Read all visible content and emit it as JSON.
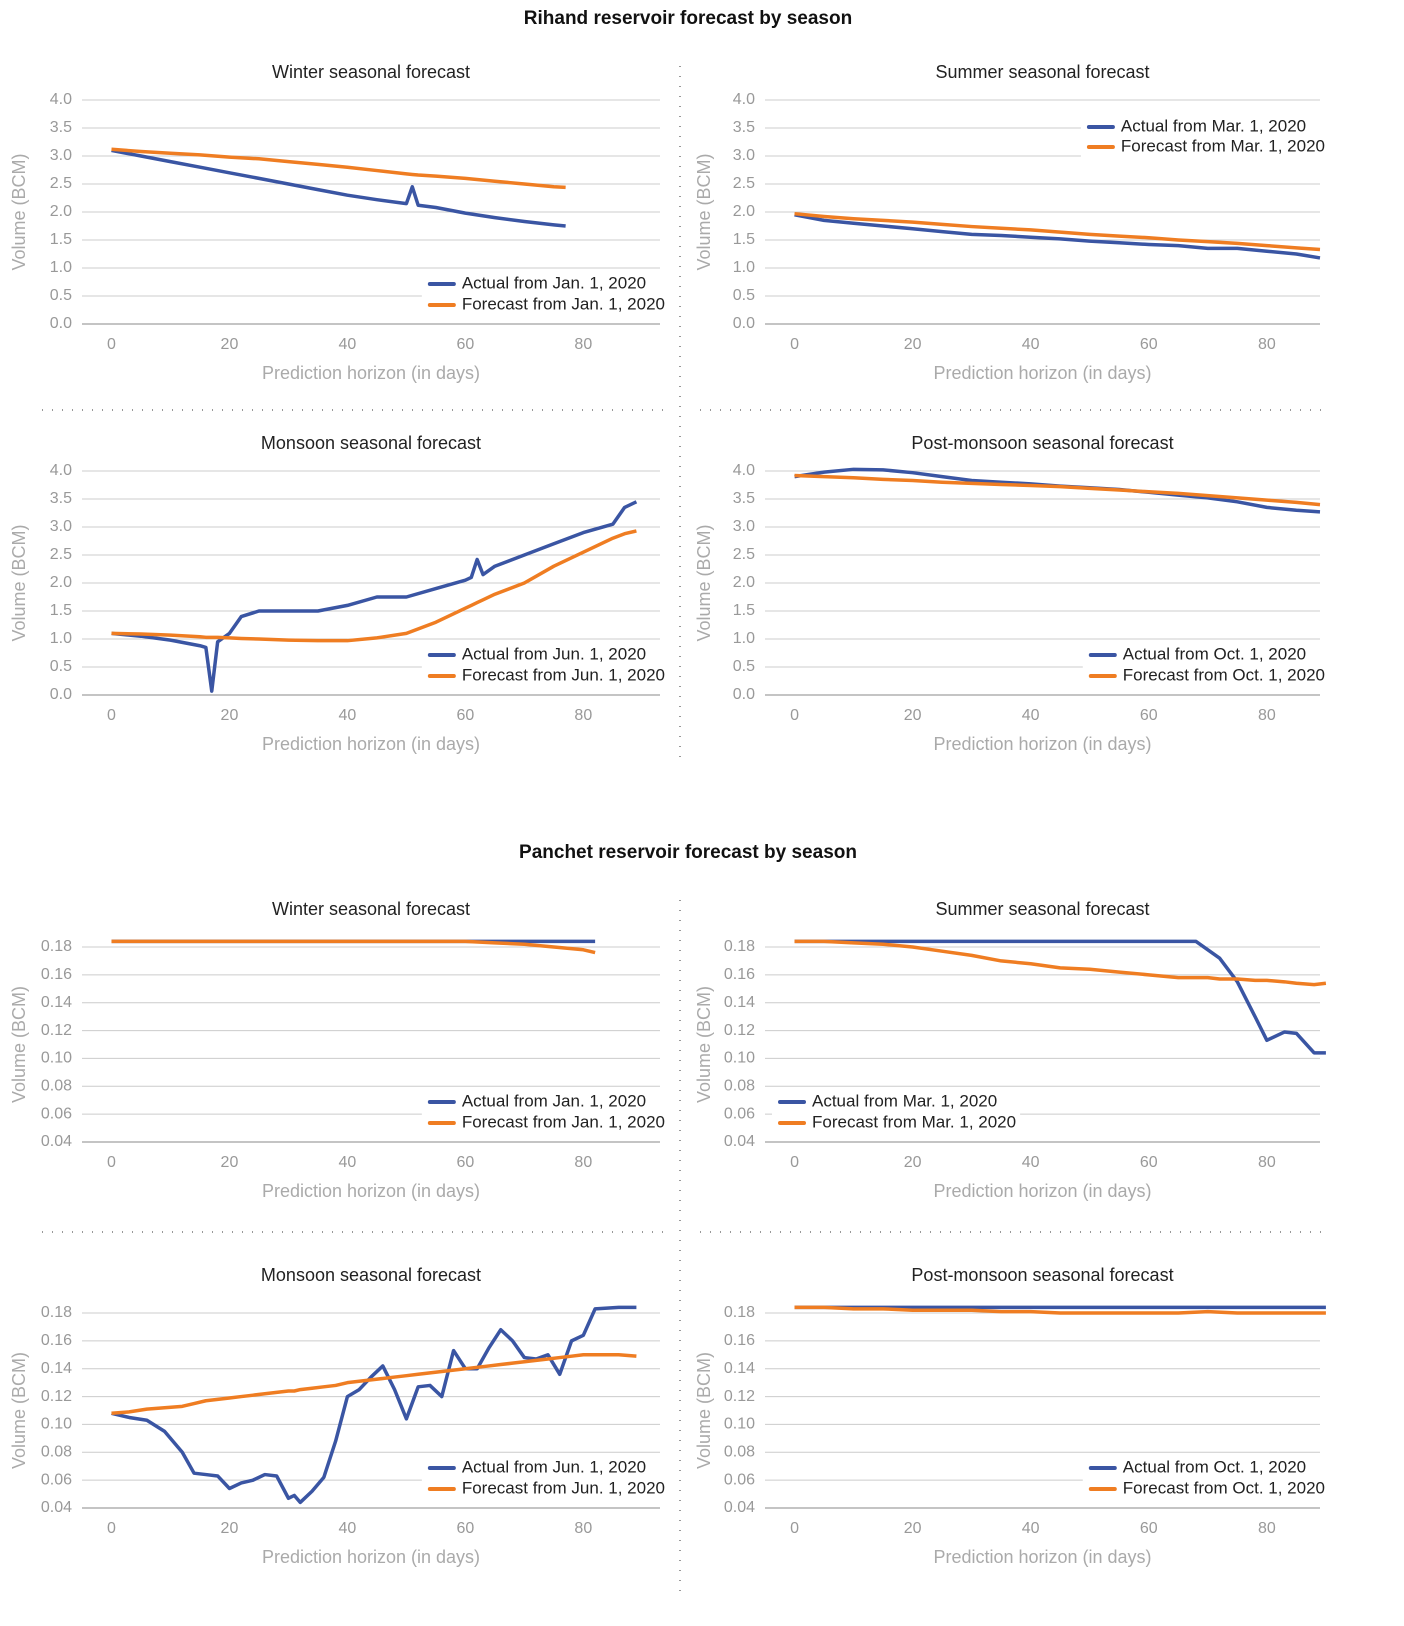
{
  "titles": [
    "Rihand reservoir forecast by season",
    "Panchet reservoir forecast by season"
  ],
  "chart_data": [
    {
      "type": "line",
      "title": "Winter seasonal forecast",
      "x_label": "Prediction horizon (in days)",
      "y_label": "Volume (BCM)",
      "grid": true,
      "legend": "lower right",
      "x": [
        0,
        5,
        10,
        15,
        20,
        25,
        30,
        35,
        40,
        45,
        50,
        51,
        52,
        55,
        60,
        65,
        70,
        75,
        77
      ],
      "series": [
        {
          "name": "Actual from Jan. 1, 2020",
          "color": "#3a55a3",
          "values": [
            3.1,
            3.0,
            2.9,
            2.8,
            2.7,
            2.6,
            2.5,
            2.4,
            2.3,
            2.22,
            2.15,
            2.45,
            2.12,
            2.08,
            1.98,
            1.9,
            1.83,
            1.77,
            1.75
          ]
        },
        {
          "name": "Forecast from Jan. 1, 2020",
          "color": "#ef7d22",
          "values": [
            3.12,
            3.08,
            3.05,
            3.02,
            2.98,
            2.95,
            2.9,
            2.85,
            2.8,
            2.74,
            2.68,
            2.67,
            2.66,
            2.64,
            2.6,
            2.55,
            2.5,
            2.45,
            2.44
          ]
        }
      ],
      "xlim": [
        -5,
        93
      ],
      "ylim": [
        0,
        4
      ],
      "xticks": [
        0,
        20,
        40,
        60,
        80
      ],
      "yticks": [
        {
          "value": 0,
          "label": "0.0"
        },
        0.5,
        {
          "value": 1,
          "label": "1.0"
        },
        1.5,
        {
          "value": 2,
          "label": "2.0"
        },
        2.5,
        {
          "value": 3,
          "label": "3.0"
        },
        3.5,
        {
          "value": 4,
          "label": "4.0"
        }
      ]
    },
    {
      "type": "line",
      "title": "Summer seasonal forecast",
      "x_label": "Prediction horizon (in days)",
      "y_label": "Volume (BCM)",
      "grid": true,
      "legend": "upper right",
      "x": [
        0,
        5,
        10,
        15,
        20,
        25,
        30,
        35,
        40,
        45,
        50,
        55,
        60,
        65,
        70,
        75,
        80,
        85,
        89
      ],
      "series": [
        {
          "name": "Actual from Mar. 1, 2020",
          "color": "#3a55a3",
          "values": [
            1.95,
            1.85,
            1.8,
            1.75,
            1.7,
            1.65,
            1.6,
            1.58,
            1.55,
            1.52,
            1.48,
            1.45,
            1.42,
            1.4,
            1.35,
            1.35,
            1.3,
            1.25,
            1.18
          ]
        },
        {
          "name": "Forecast from Mar. 1, 2020",
          "color": "#ef7d22",
          "values": [
            1.97,
            1.92,
            1.88,
            1.85,
            1.82,
            1.78,
            1.74,
            1.71,
            1.68,
            1.64,
            1.6,
            1.57,
            1.54,
            1.5,
            1.47,
            1.44,
            1.4,
            1.36,
            1.33
          ]
        }
      ],
      "xlim": [
        -5,
        89
      ],
      "ylim": [
        0,
        4
      ],
      "xticks": [
        0,
        20,
        40,
        60,
        80
      ],
      "yticks": [
        {
          "value": 0,
          "label": "0.0"
        },
        0.5,
        {
          "value": 1,
          "label": "1.0"
        },
        1.5,
        {
          "value": 2,
          "label": "2.0"
        },
        2.5,
        {
          "value": 3,
          "label": "3.0"
        },
        3.5,
        {
          "value": 4,
          "label": "4.0"
        }
      ]
    },
    {
      "type": "line",
      "title": "Monsoon seasonal forecast",
      "x_label": "Prediction horizon (in days)",
      "y_label": "Volume (BCM)",
      "grid": true,
      "legend": "lower right",
      "x": [
        0,
        5,
        10,
        15,
        16,
        17,
        18,
        20,
        22,
        25,
        30,
        35,
        40,
        45,
        50,
        55,
        60,
        61,
        62,
        63,
        65,
        70,
        75,
        80,
        85,
        87,
        89
      ],
      "series": [
        {
          "name": "Actual from Jun. 1, 2020",
          "color": "#3a55a3",
          "values": [
            1.1,
            1.05,
            0.98,
            0.88,
            0.85,
            0.07,
            0.95,
            1.1,
            1.4,
            1.5,
            1.5,
            1.5,
            1.6,
            1.75,
            1.75,
            1.9,
            2.05,
            2.1,
            2.42,
            2.15,
            2.3,
            2.5,
            2.7,
            2.9,
            3.05,
            3.35,
            3.45
          ]
        },
        {
          "name": "Forecast from Jun. 1, 2020",
          "color": "#ef7d22",
          "values": [
            1.1,
            1.09,
            1.07,
            1.04,
            1.03,
            1.03,
            1.03,
            1.02,
            1.01,
            1.0,
            0.98,
            0.97,
            0.97,
            1.02,
            1.1,
            1.3,
            1.55,
            1.6,
            1.65,
            1.7,
            1.8,
            2.0,
            2.3,
            2.55,
            2.8,
            2.88,
            2.93
          ]
        }
      ],
      "xlim": [
        -5,
        93
      ],
      "ylim": [
        0,
        4
      ],
      "xticks": [
        0,
        20,
        40,
        60,
        80
      ],
      "yticks": [
        {
          "value": 0,
          "label": "0.0"
        },
        0.5,
        {
          "value": 1,
          "label": "1.0"
        },
        1.5,
        {
          "value": 2,
          "label": "2.0"
        },
        2.5,
        {
          "value": 3,
          "label": "3.0"
        },
        3.5,
        {
          "value": 4,
          "label": "4.0"
        }
      ]
    },
    {
      "type": "line",
      "title": "Post-monsoon seasonal forecast",
      "x_label": "Prediction horizon (in days)",
      "y_label": "Volume (BCM)",
      "grid": true,
      "legend": "lower right",
      "x": [
        0,
        5,
        10,
        15,
        20,
        25,
        30,
        35,
        40,
        45,
        50,
        55,
        60,
        65,
        70,
        75,
        80,
        85,
        89
      ],
      "series": [
        {
          "name": "Actual from Oct. 1, 2020",
          "color": "#3a55a3",
          "values": [
            3.9,
            3.98,
            4.03,
            4.02,
            3.97,
            3.9,
            3.83,
            3.8,
            3.77,
            3.73,
            3.7,
            3.67,
            3.62,
            3.57,
            3.52,
            3.45,
            3.35,
            3.3,
            3.27
          ]
        },
        {
          "name": "Forecast from Oct. 1, 2020",
          "color": "#ef7d22",
          "values": [
            3.92,
            3.9,
            3.88,
            3.85,
            3.83,
            3.8,
            3.78,
            3.76,
            3.74,
            3.72,
            3.69,
            3.66,
            3.63,
            3.6,
            3.56,
            3.52,
            3.48,
            3.44,
            3.4
          ]
        }
      ],
      "xlim": [
        -5,
        89
      ],
      "ylim": [
        0,
        4
      ],
      "xticks": [
        0,
        20,
        40,
        60,
        80
      ],
      "yticks": [
        {
          "value": 0,
          "label": "0.0"
        },
        0.5,
        {
          "value": 1,
          "label": "1.0"
        },
        1.5,
        {
          "value": 2,
          "label": "2.0"
        },
        2.5,
        {
          "value": 3,
          "label": "3.0"
        },
        3.5,
        {
          "value": 4,
          "label": "4.0"
        }
      ]
    },
    {
      "type": "line",
      "title": "Winter seasonal forecast",
      "x_label": "Prediction horizon (in days)",
      "y_label": "Volume (BCM)",
      "grid": true,
      "legend": "lower right",
      "x": [
        0,
        5,
        10,
        15,
        20,
        25,
        30,
        35,
        40,
        45,
        50,
        55,
        60,
        65,
        70,
        75,
        80,
        82
      ],
      "series": [
        {
          "name": "Actual from Jan. 1, 2020",
          "color": "#3a55a3",
          "values": [
            0.184,
            0.184,
            0.184,
            0.184,
            0.184,
            0.184,
            0.184,
            0.184,
            0.184,
            0.184,
            0.184,
            0.184,
            0.184,
            0.184,
            0.184,
            0.184,
            0.184,
            0.184
          ]
        },
        {
          "name": "Forecast from Jan. 1, 2020",
          "color": "#ef7d22",
          "values": [
            0.184,
            0.184,
            0.184,
            0.184,
            0.184,
            0.184,
            0.184,
            0.184,
            0.184,
            0.184,
            0.184,
            0.184,
            0.184,
            0.183,
            0.182,
            0.18,
            0.178,
            0.176
          ]
        }
      ],
      "xlim": [
        -5,
        93
      ],
      "ylim": [
        0.04,
        0.18
      ],
      "xticks": [
        0,
        20,
        40,
        60,
        80
      ],
      "yticks": [
        0.04,
        0.06,
        0.08,
        {
          "value": 0.1,
          "label": "0.10"
        },
        0.12,
        0.14,
        0.16,
        0.18
      ]
    },
    {
      "type": "line",
      "title": "Summer seasonal forecast",
      "x_label": "Prediction horizon (in days)",
      "y_label": "Volume (BCM)",
      "grid": true,
      "legend": "lower left",
      "x": [
        0,
        5,
        10,
        15,
        20,
        25,
        30,
        35,
        40,
        45,
        50,
        55,
        60,
        65,
        68,
        70,
        72,
        75,
        78,
        80,
        83,
        85,
        88,
        90
      ],
      "series": [
        {
          "name": "Actual from Mar. 1, 2020",
          "color": "#3a55a3",
          "values": [
            0.184,
            0.184,
            0.184,
            0.184,
            0.184,
            0.184,
            0.184,
            0.184,
            0.184,
            0.184,
            0.184,
            0.184,
            0.184,
            0.184,
            0.184,
            0.178,
            0.172,
            0.155,
            0.13,
            0.113,
            0.119,
            0.118,
            0.104,
            0.104
          ]
        },
        {
          "name": "Forecast from Mar. 1, 2020",
          "color": "#ef7d22",
          "values": [
            0.184,
            0.184,
            0.183,
            0.182,
            0.18,
            0.177,
            0.174,
            0.17,
            0.168,
            0.165,
            0.164,
            0.162,
            0.16,
            0.158,
            0.158,
            0.158,
            0.157,
            0.157,
            0.156,
            0.156,
            0.155,
            0.154,
            0.153,
            0.154
          ]
        }
      ],
      "xlim": [
        -5,
        89
      ],
      "ylim": [
        0.04,
        0.18
      ],
      "xticks": [
        0,
        20,
        40,
        60,
        80
      ],
      "yticks": [
        0.04,
        0.06,
        0.08,
        {
          "value": 0.1,
          "label": "0.10"
        },
        0.12,
        0.14,
        0.16,
        0.18
      ]
    },
    {
      "type": "line",
      "title": "Monsoon seasonal forecast",
      "x_label": "Prediction horizon (in days)",
      "y_label": "Volume (BCM)",
      "grid": true,
      "legend": "lower right",
      "x": [
        0,
        3,
        6,
        9,
        12,
        14,
        16,
        18,
        20,
        22,
        24,
        26,
        28,
        30,
        31,
        32,
        34,
        36,
        38,
        40,
        42,
        44,
        46,
        48,
        50,
        52,
        54,
        56,
        58,
        60,
        62,
        64,
        66,
        68,
        70,
        72,
        74,
        76,
        78,
        80,
        82,
        86,
        89
      ],
      "series": [
        {
          "name": "Actual from Jun. 1, 2020",
          "color": "#3a55a3",
          "values": [
            0.108,
            0.105,
            0.103,
            0.095,
            0.08,
            0.065,
            0.064,
            0.063,
            0.054,
            0.058,
            0.06,
            0.064,
            0.063,
            0.047,
            0.049,
            0.044,
            0.052,
            0.062,
            0.088,
            0.12,
            0.125,
            0.134,
            0.142,
            0.125,
            0.104,
            0.127,
            0.128,
            0.12,
            0.153,
            0.14,
            0.14,
            0.155,
            0.168,
            0.16,
            0.148,
            0.147,
            0.15,
            0.136,
            0.16,
            0.164,
            0.183,
            0.184,
            0.184
          ]
        },
        {
          "name": "Forecast from Jun. 1, 2020",
          "color": "#ef7d22",
          "values": [
            0.108,
            0.109,
            0.111,
            0.112,
            0.113,
            0.115,
            0.117,
            0.118,
            0.119,
            0.12,
            0.121,
            0.122,
            0.123,
            0.124,
            0.124,
            0.125,
            0.126,
            0.127,
            0.128,
            0.13,
            0.131,
            0.132,
            0.133,
            0.134,
            0.135,
            0.136,
            0.137,
            0.138,
            0.139,
            0.14,
            0.141,
            0.142,
            0.143,
            0.144,
            0.145,
            0.146,
            0.147,
            0.148,
            0.149,
            0.15,
            0.15,
            0.15,
            0.149
          ]
        }
      ],
      "xlim": [
        -5,
        93
      ],
      "ylim": [
        0.04,
        0.18
      ],
      "xticks": [
        0,
        20,
        40,
        60,
        80
      ],
      "yticks": [
        0.04,
        0.06,
        0.08,
        {
          "value": 0.1,
          "label": "0.10"
        },
        0.12,
        0.14,
        0.16,
        0.18
      ]
    },
    {
      "type": "line",
      "title": "Post-monsoon seasonal forecast",
      "x_label": "Prediction horizon (in days)",
      "y_label": "Volume (BCM)",
      "grid": true,
      "legend": "lower right",
      "x": [
        0,
        5,
        10,
        15,
        20,
        25,
        30,
        35,
        40,
        45,
        50,
        55,
        60,
        65,
        70,
        75,
        80,
        85,
        90
      ],
      "series": [
        {
          "name": "Actual from Oct. 1, 2020",
          "color": "#3a55a3",
          "values": [
            0.184,
            0.184,
            0.184,
            0.184,
            0.184,
            0.184,
            0.184,
            0.184,
            0.184,
            0.184,
            0.184,
            0.184,
            0.184,
            0.184,
            0.184,
            0.184,
            0.184,
            0.184,
            0.184
          ]
        },
        {
          "name": "Forecast from Oct. 1, 2020",
          "color": "#ef7d22",
          "values": [
            0.184,
            0.184,
            0.183,
            0.183,
            0.182,
            0.182,
            0.182,
            0.181,
            0.181,
            0.18,
            0.18,
            0.18,
            0.18,
            0.18,
            0.181,
            0.18,
            0.18,
            0.18,
            0.18
          ]
        }
      ],
      "xlim": [
        -5,
        89
      ],
      "ylim": [
        0.04,
        0.18
      ],
      "xticks": [
        0,
        20,
        40,
        60,
        80
      ],
      "yticks": [
        0.04,
        0.06,
        0.08,
        {
          "value": 0.1,
          "label": "0.10"
        },
        0.12,
        0.14,
        0.16,
        0.18
      ]
    }
  ]
}
